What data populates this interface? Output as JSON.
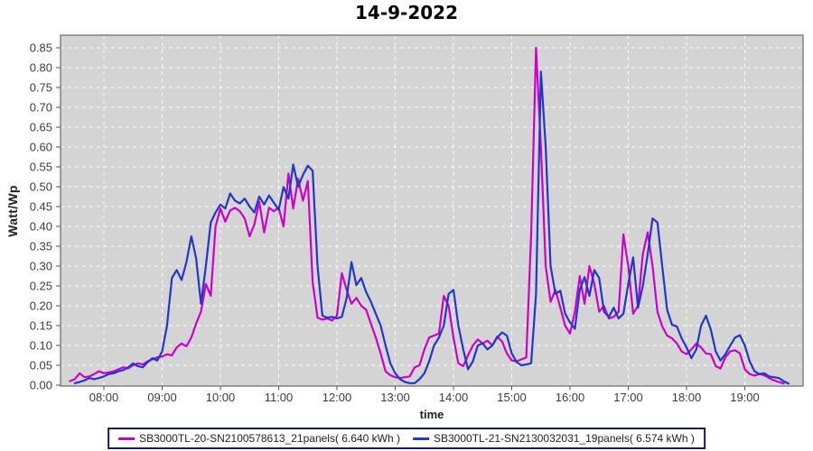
{
  "title": "14-9-2022",
  "colors": {
    "plot_bg": "#d4d4d4",
    "grid": "#ffffff",
    "plot_border": "#828282",
    "tick": "#555555",
    "axis_text": "#3c3c3c",
    "legend_border": "#17176e",
    "series_magenta": "#cc00cc",
    "series_blue": "#2236c8"
  },
  "chart_data": {
    "type": "line",
    "title": "14-9-2022",
    "xlabel": "time",
    "ylabel": "Watt/Wp",
    "grid": "white dashed gridlines on gray plot background",
    "legend_position": "bottom-center",
    "x_ticks": [
      "08:00",
      "09:00",
      "10:00",
      "11:00",
      "12:00",
      "13:00",
      "14:00",
      "15:00",
      "16:00",
      "17:00",
      "18:00",
      "19:00"
    ],
    "y_ticks": [
      "0.00",
      "0.05",
      "0.10",
      "0.15",
      "0.20",
      "0.25",
      "0.30",
      "0.35",
      "0.40",
      "0.45",
      "0.50",
      "0.55",
      "0.60",
      "0.65",
      "0.70",
      "0.75",
      "0.80",
      "0.85"
    ],
    "x_range_time": [
      "07:15",
      "20:00"
    ],
    "ylim": [
      0,
      0.882
    ],
    "series": [
      {
        "name": "SB3000TL-20-SN2100578613_21panels( 6.640 kWh )",
        "color": "#cc00cc",
        "start_minute": 445,
        "step_minutes": 5,
        "values": [
          0.01,
          0.015,
          0.03,
          0.02,
          0.022,
          0.028,
          0.035,
          0.03,
          0.032,
          0.035,
          0.04,
          0.045,
          0.042,
          0.05,
          0.055,
          0.052,
          0.06,
          0.065,
          0.07,
          0.072,
          0.078,
          0.075,
          0.095,
          0.105,
          0.098,
          0.12,
          0.155,
          0.185,
          0.255,
          0.225,
          0.4,
          0.445,
          0.412,
          0.44,
          0.447,
          0.438,
          0.42,
          0.375,
          0.405,
          0.462,
          0.385,
          0.447,
          0.438,
          0.447,
          0.4,
          0.533,
          0.445,
          0.52,
          0.465,
          0.514,
          0.26,
          0.17,
          0.165,
          0.168,
          0.163,
          0.175,
          0.282,
          0.24,
          0.205,
          0.22,
          0.2,
          0.19,
          0.155,
          0.12,
          0.08,
          0.035,
          0.025,
          0.02,
          0.018,
          0.02,
          0.022,
          0.045,
          0.05,
          0.09,
          0.12,
          0.125,
          0.13,
          0.225,
          0.2,
          0.12,
          0.055,
          0.048,
          0.075,
          0.1,
          0.115,
          0.105,
          0.112,
          0.1,
          0.122,
          0.11,
          0.08,
          0.062,
          0.06,
          0.065,
          0.07,
          0.38,
          0.85,
          0.6,
          0.3,
          0.21,
          0.24,
          0.195,
          0.15,
          0.13,
          0.185,
          0.275,
          0.205,
          0.3,
          0.255,
          0.185,
          0.2,
          0.168,
          0.172,
          0.185,
          0.38,
          0.3,
          0.18,
          0.2,
          0.33,
          0.385,
          0.3,
          0.185,
          0.148,
          0.125,
          0.118,
          0.105,
          0.085,
          0.078,
          0.09,
          0.105,
          0.095,
          0.08,
          0.078,
          0.048,
          0.042,
          0.07,
          0.085,
          0.088,
          0.08,
          0.04,
          0.028,
          0.024,
          0.028,
          0.025,
          0.018,
          0.012,
          0.008,
          0.004
        ]
      },
      {
        "name": "SB3000TL-21-SN2130032031_19panels( 6.574 kWh )",
        "color": "#2236c8",
        "start_minute": 450,
        "step_minutes": 5,
        "values": [
          0.005,
          0.008,
          0.012,
          0.018,
          0.015,
          0.018,
          0.022,
          0.028,
          0.03,
          0.035,
          0.038,
          0.045,
          0.055,
          0.048,
          0.045,
          0.058,
          0.068,
          0.062,
          0.085,
          0.15,
          0.27,
          0.29,
          0.265,
          0.31,
          0.375,
          0.32,
          0.205,
          0.3,
          0.41,
          0.435,
          0.455,
          0.445,
          0.483,
          0.465,
          0.458,
          0.47,
          0.45,
          0.435,
          0.475,
          0.455,
          0.478,
          0.46,
          0.442,
          0.499,
          0.47,
          0.556,
          0.5,
          0.53,
          0.553,
          0.54,
          0.3,
          0.175,
          0.17,
          0.172,
          0.168,
          0.172,
          0.22,
          0.31,
          0.252,
          0.27,
          0.235,
          0.21,
          0.18,
          0.15,
          0.1,
          0.055,
          0.03,
          0.015,
          0.008,
          0.005,
          0.005,
          0.015,
          0.03,
          0.06,
          0.1,
          0.12,
          0.15,
          0.23,
          0.24,
          0.15,
          0.09,
          0.04,
          0.06,
          0.1,
          0.105,
          0.09,
          0.1,
          0.12,
          0.133,
          0.125,
          0.08,
          0.058,
          0.05,
          0.052,
          0.055,
          0.23,
          0.79,
          0.6,
          0.3,
          0.23,
          0.238,
          0.18,
          0.158,
          0.142,
          0.24,
          0.272,
          0.225,
          0.29,
          0.27,
          0.185,
          0.172,
          0.195,
          0.168,
          0.18,
          0.255,
          0.322,
          0.195,
          0.25,
          0.33,
          0.42,
          0.41,
          0.3,
          0.19,
          0.152,
          0.148,
          0.118,
          0.095,
          0.068,
          0.09,
          0.15,
          0.175,
          0.14,
          0.085,
          0.062,
          0.078,
          0.1,
          0.12,
          0.126,
          0.1,
          0.06,
          0.035,
          0.028,
          0.03,
          0.022,
          0.02,
          0.018,
          0.01,
          0.004
        ]
      }
    ]
  },
  "legend": {
    "items": [
      {
        "label": "SB3000TL-20-SN2100578613_21panels( 6.640 kWh )"
      },
      {
        "label": "SB3000TL-21-SN2130032031_19panels( 6.574 kWh )"
      }
    ]
  }
}
